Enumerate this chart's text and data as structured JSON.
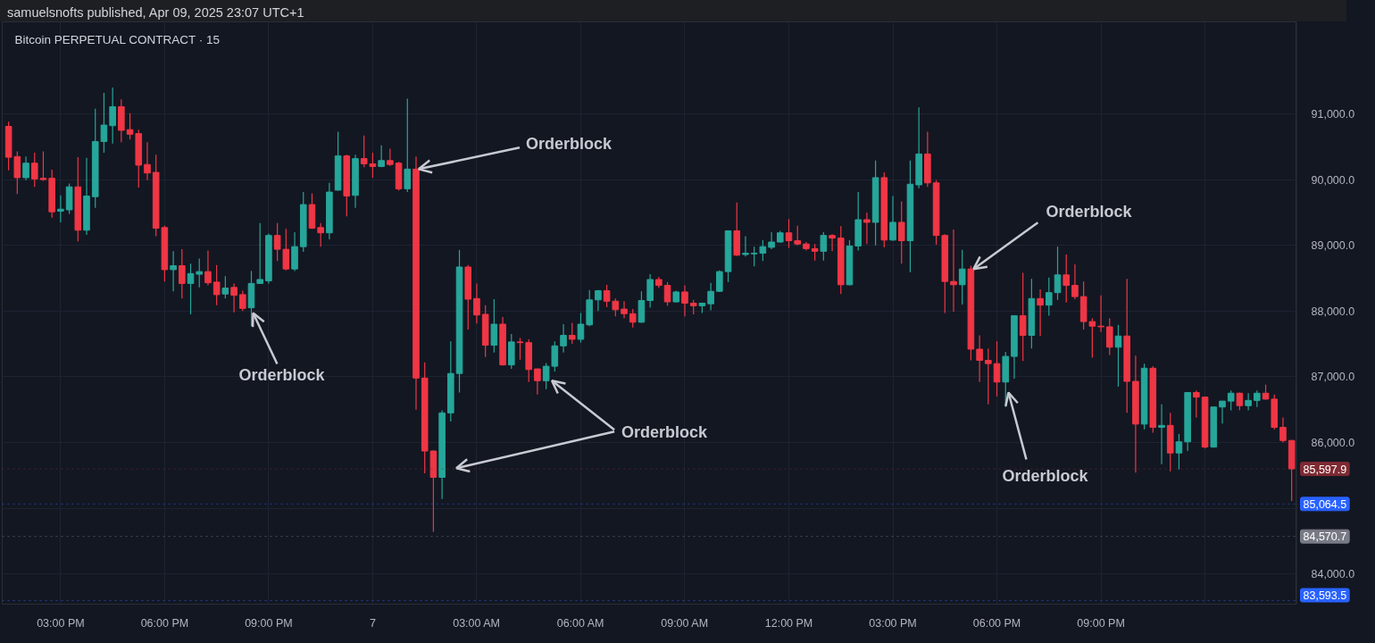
{
  "chart_data": {
    "type": "candlestick",
    "title": "Bitcoin PERPETUAL CONTRACT · 15",
    "x": [
      "2025-04-06T13:30",
      "2025-04-06T13:45",
      "2025-04-06T14:00",
      "2025-04-06T14:15",
      "2025-04-06T14:30",
      "2025-04-06T14:45",
      "2025-04-06T15:00",
      "2025-04-06T15:15",
      "2025-04-06T15:30",
      "2025-04-06T15:45",
      "2025-04-06T16:00",
      "2025-04-06T16:15",
      "2025-04-06T16:30",
      "2025-04-06T16:45",
      "2025-04-06T17:00",
      "2025-04-06T17:15",
      "2025-04-06T17:30",
      "2025-04-06T17:45",
      "2025-04-06T18:00",
      "2025-04-06T18:15",
      "2025-04-06T18:30",
      "2025-04-06T18:45",
      "2025-04-06T19:00",
      "2025-04-06T19:15",
      "2025-04-06T19:30",
      "2025-04-06T19:45",
      "2025-04-06T20:00",
      "2025-04-06T20:15",
      "2025-04-06T20:30",
      "2025-04-06T20:45",
      "2025-04-06T21:00",
      "2025-04-06T21:15",
      "2025-04-06T21:30",
      "2025-04-06T21:45",
      "2025-04-06T22:00",
      "2025-04-06T22:15",
      "2025-04-06T22:30",
      "2025-04-06T22:45",
      "2025-04-06T23:00",
      "2025-04-06T23:15",
      "2025-04-06T23:30",
      "2025-04-06T23:45",
      "2025-04-07T00:00",
      "2025-04-07T00:15",
      "2025-04-07T00:30",
      "2025-04-07T00:45",
      "2025-04-07T01:00",
      "2025-04-07T01:15",
      "2025-04-07T01:30",
      "2025-04-07T01:45",
      "2025-04-07T02:00",
      "2025-04-07T02:15",
      "2025-04-07T02:30",
      "2025-04-07T02:45",
      "2025-04-07T03:00",
      "2025-04-07T03:15",
      "2025-04-07T03:30",
      "2025-04-07T03:45",
      "2025-04-07T04:00",
      "2025-04-07T04:15",
      "2025-04-07T04:30",
      "2025-04-07T04:45",
      "2025-04-07T05:00",
      "2025-04-07T05:15",
      "2025-04-07T05:30",
      "2025-04-07T05:45",
      "2025-04-07T06:00",
      "2025-04-07T06:15",
      "2025-04-07T06:30",
      "2025-04-07T06:45",
      "2025-04-07T07:00",
      "2025-04-07T07:15",
      "2025-04-07T07:30",
      "2025-04-07T07:45",
      "2025-04-07T08:00",
      "2025-04-07T08:15",
      "2025-04-07T08:30",
      "2025-04-07T08:45",
      "2025-04-07T09:00",
      "2025-04-07T09:15",
      "2025-04-07T09:30",
      "2025-04-07T09:45",
      "2025-04-07T10:00",
      "2025-04-07T10:15",
      "2025-04-07T10:30",
      "2025-04-07T10:45",
      "2025-04-07T11:00",
      "2025-04-07T11:15",
      "2025-04-07T11:30",
      "2025-04-07T11:45",
      "2025-04-07T12:00",
      "2025-04-07T12:15",
      "2025-04-07T12:30",
      "2025-04-07T12:45",
      "2025-04-07T13:00",
      "2025-04-07T13:15",
      "2025-04-07T13:30",
      "2025-04-07T13:45",
      "2025-04-07T14:00",
      "2025-04-07T14:15",
      "2025-04-07T14:30",
      "2025-04-07T14:45",
      "2025-04-07T15:00",
      "2025-04-07T15:15",
      "2025-04-07T15:30",
      "2025-04-07T15:45",
      "2025-04-07T16:00",
      "2025-04-07T16:15",
      "2025-04-07T16:30",
      "2025-04-07T16:45",
      "2025-04-07T17:00",
      "2025-04-07T17:15",
      "2025-04-07T17:30",
      "2025-04-07T17:45",
      "2025-04-07T18:00",
      "2025-04-07T18:15",
      "2025-04-07T18:30",
      "2025-04-07T18:45",
      "2025-04-07T19:00",
      "2025-04-07T19:15",
      "2025-04-07T19:30",
      "2025-04-07T19:45",
      "2025-04-07T20:00",
      "2025-04-07T20:15",
      "2025-04-07T20:30",
      "2025-04-07T20:45",
      "2025-04-07T21:00",
      "2025-04-07T21:15",
      "2025-04-07T21:30",
      "2025-04-07T21:45",
      "2025-04-07T22:00",
      "2025-04-07T22:15",
      "2025-04-07T22:30",
      "2025-04-07T22:45",
      "2025-04-07T23:00",
      "2025-04-07T23:15",
      "2025-04-07T23:30",
      "2025-04-07T23:45",
      "2025-04-08T00:00",
      "2025-04-08T00:15",
      "2025-04-08T00:30",
      "2025-04-08T00:45",
      "2025-04-08T01:00",
      "2025-04-08T01:15",
      "2025-04-08T01:30",
      "2025-04-08T01:45",
      "2025-04-08T02:00",
      "2025-04-08T02:15",
      "2025-04-08T02:30"
    ],
    "ohlc": [
      [
        90810,
        90880,
        90140,
        90340
      ],
      [
        90350,
        90430,
        89780,
        90030
      ],
      [
        90030,
        90350,
        89990,
        90250
      ],
      [
        90250,
        90410,
        89890,
        90010
      ],
      [
        90020,
        90430,
        89980,
        90000
      ],
      [
        90020,
        90150,
        89420,
        89510
      ],
      [
        89520,
        89760,
        89350,
        89550
      ],
      [
        89540,
        89940,
        89480,
        89890
      ],
      [
        89890,
        90340,
        89060,
        89230
      ],
      [
        89230,
        90330,
        89160,
        89750
      ],
      [
        89740,
        91080,
        89570,
        90580
      ],
      [
        90580,
        91320,
        90410,
        90830
      ],
      [
        90820,
        91400,
        90550,
        91110
      ],
      [
        91110,
        91220,
        90570,
        90750
      ],
      [
        90760,
        91010,
        90610,
        90690
      ],
      [
        90700,
        90760,
        89880,
        90220
      ],
      [
        90230,
        90570,
        89990,
        90100
      ],
      [
        90110,
        90380,
        89140,
        89260
      ],
      [
        89270,
        89300,
        88450,
        88630
      ],
      [
        88630,
        88910,
        88300,
        88690
      ],
      [
        88690,
        88940,
        88190,
        88420
      ],
      [
        88420,
        88720,
        87950,
        88570
      ],
      [
        88560,
        88800,
        88360,
        88600
      ],
      [
        88600,
        88920,
        88390,
        88430
      ],
      [
        88440,
        88700,
        88090,
        88250
      ],
      [
        88260,
        88530,
        88190,
        88350
      ],
      [
        88360,
        88420,
        87980,
        88240
      ],
      [
        88250,
        88310,
        88000,
        88040
      ],
      [
        88050,
        88610,
        87770,
        88420
      ],
      [
        88420,
        89340,
        88410,
        88480
      ],
      [
        88460,
        89180,
        88420,
        89150
      ],
      [
        89150,
        89340,
        88760,
        88940
      ],
      [
        88940,
        89250,
        88620,
        88640
      ],
      [
        88640,
        89200,
        88610,
        88980
      ],
      [
        88980,
        89810,
        88900,
        89620
      ],
      [
        89620,
        89790,
        89250,
        89260
      ],
      [
        89270,
        89340,
        88980,
        89190
      ],
      [
        89190,
        89950,
        89090,
        89810
      ],
      [
        89840,
        90730,
        89830,
        90360
      ],
      [
        90360,
        90380,
        89440,
        89750
      ],
      [
        89760,
        90380,
        89570,
        90320
      ],
      [
        90320,
        90670,
        90190,
        90240
      ],
      [
        90240,
        90410,
        90030,
        90200
      ],
      [
        90200,
        90520,
        90190,
        90290
      ],
      [
        90290,
        90470,
        90210,
        90230
      ],
      [
        90250,
        90270,
        89830,
        89860
      ],
      [
        89860,
        91230,
        89810,
        90160
      ],
      [
        90160,
        90350,
        86500,
        86980
      ],
      [
        86980,
        87220,
        85530,
        85870
      ],
      [
        85870,
        85880,
        84640,
        85470
      ],
      [
        85470,
        86490,
        85140,
        86450
      ],
      [
        86450,
        87540,
        86320,
        87050
      ],
      [
        87050,
        88930,
        86760,
        88670
      ],
      [
        88670,
        88700,
        87720,
        88180
      ],
      [
        88190,
        88420,
        87810,
        87940
      ],
      [
        87950,
        88090,
        87300,
        87480
      ],
      [
        87480,
        88180,
        87370,
        87800
      ],
      [
        87800,
        87910,
        87170,
        87180
      ],
      [
        87180,
        87650,
        87120,
        87530
      ],
      [
        87530,
        87590,
        87260,
        87520
      ],
      [
        87520,
        87570,
        86920,
        87110
      ],
      [
        87120,
        87120,
        86730,
        86940
      ],
      [
        86940,
        87210,
        86810,
        87160
      ],
      [
        87160,
        87540,
        87080,
        87470
      ],
      [
        87470,
        87800,
        87370,
        87630
      ],
      [
        87630,
        87820,
        87500,
        87570
      ],
      [
        87570,
        87970,
        87520,
        87800
      ],
      [
        87790,
        88320,
        87770,
        88170
      ],
      [
        88170,
        88320,
        88000,
        88310
      ],
      [
        88310,
        88400,
        88060,
        88150
      ],
      [
        88150,
        88190,
        87920,
        88020
      ],
      [
        88030,
        88150,
        87890,
        87960
      ],
      [
        87960,
        88030,
        87750,
        87830
      ],
      [
        87830,
        88300,
        87820,
        88160
      ],
      [
        88160,
        88560,
        88050,
        88480
      ],
      [
        88480,
        88520,
        88350,
        88390
      ],
      [
        88390,
        88440,
        88080,
        88140
      ],
      [
        88140,
        88310,
        88130,
        88290
      ],
      [
        88290,
        88390,
        87920,
        88120
      ],
      [
        88120,
        88170,
        87950,
        88080
      ],
      [
        88080,
        88120,
        87970,
        88120
      ],
      [
        88110,
        88430,
        88010,
        88300
      ],
      [
        88300,
        88620,
        88290,
        88600
      ],
      [
        88600,
        89230,
        88440,
        89220
      ],
      [
        89220,
        89650,
        88840,
        88850
      ],
      [
        88860,
        89140,
        88830,
        88880
      ],
      [
        88870,
        88980,
        88680,
        88880
      ],
      [
        88880,
        89080,
        88760,
        88980
      ],
      [
        88970,
        89200,
        88940,
        89050
      ],
      [
        89050,
        89220,
        89040,
        89190
      ],
      [
        89190,
        89400,
        88960,
        89070
      ],
      [
        89070,
        89300,
        89000,
        89020
      ],
      [
        89020,
        89050,
        88920,
        88950
      ],
      [
        88950,
        89020,
        88770,
        88910
      ],
      [
        88910,
        89200,
        88770,
        89150
      ],
      [
        89150,
        89170,
        88910,
        89110
      ],
      [
        89110,
        89290,
        88260,
        88400
      ],
      [
        88400,
        89080,
        88390,
        88990
      ],
      [
        88990,
        89810,
        88920,
        89390
      ],
      [
        89390,
        89500,
        89020,
        89350
      ],
      [
        89350,
        90290,
        89000,
        90030
      ],
      [
        90030,
        90110,
        88970,
        89080
      ],
      [
        89080,
        89750,
        89070,
        89350
      ],
      [
        89350,
        89670,
        88720,
        89070
      ],
      [
        89070,
        90290,
        88590,
        89930
      ],
      [
        89920,
        91100,
        89870,
        90390
      ],
      [
        90390,
        90730,
        89890,
        89950
      ],
      [
        89950,
        89990,
        89010,
        89150
      ],
      [
        89150,
        89170,
        87970,
        88450
      ],
      [
        88450,
        89240,
        87990,
        88400
      ],
      [
        88400,
        88930,
        88100,
        88640
      ],
      [
        88640,
        88690,
        87250,
        87420
      ],
      [
        87420,
        87630,
        86920,
        87250
      ],
      [
        87250,
        87430,
        86580,
        87200
      ],
      [
        87200,
        87540,
        86700,
        86920
      ],
      [
        86920,
        87380,
        86540,
        87310
      ],
      [
        87310,
        87930,
        86970,
        87930
      ],
      [
        87930,
        88580,
        87240,
        87630
      ],
      [
        87630,
        88490,
        87430,
        88190
      ],
      [
        88190,
        88330,
        87620,
        88090
      ],
      [
        88090,
        88510,
        87930,
        88280
      ],
      [
        88280,
        88980,
        88170,
        88550
      ],
      [
        88550,
        88860,
        88130,
        88390
      ],
      [
        88390,
        88710,
        88180,
        88220
      ],
      [
        88220,
        88450,
        87720,
        87840
      ],
      [
        87840,
        87890,
        87290,
        87770
      ],
      [
        87770,
        88240,
        87680,
        87760
      ],
      [
        87760,
        87890,
        87330,
        87450
      ],
      [
        87450,
        87790,
        86850,
        87620
      ],
      [
        87620,
        88490,
        86450,
        86930
      ],
      [
        86930,
        87320,
        85540,
        86280
      ],
      [
        86280,
        87200,
        86200,
        87130
      ],
      [
        87130,
        87160,
        86150,
        86230
      ],
      [
        86230,
        86580,
        85670,
        86260
      ],
      [
        86260,
        86450,
        85560,
        85840
      ],
      [
        85840,
        86130,
        85590,
        86010
      ],
      [
        86010,
        86760,
        85870,
        86760
      ],
      [
        86760,
        86790,
        86380,
        86690
      ],
      [
        86690,
        86700,
        85910,
        85930
      ],
      [
        85930,
        86540,
        85920,
        86540
      ],
      [
        86540,
        86630,
        86290,
        86630
      ],
      [
        86630,
        86790,
        86490,
        86750
      ],
      [
        86750,
        86760,
        86490,
        86560
      ],
      [
        86560,
        86750,
        86490,
        86640
      ],
      [
        86640,
        86790,
        86540,
        86750
      ],
      [
        86750,
        86880,
        86650,
        86660
      ],
      [
        86660,
        86730,
        86200,
        86230
      ],
      [
        86230,
        86380,
        86000,
        86030
      ],
      [
        86030,
        86040,
        85110,
        85597.9
      ]
    ],
    "colors": [
      "#ef3645",
      "#ef3645",
      "#26a69a",
      "#ef3645",
      "#ef3645",
      "#ef3645",
      "#26a69a",
      "#26a69a",
      "#ef3645",
      "#26a69a",
      "#26a69a",
      "#26a69a",
      "#26a69a",
      "#ef3645",
      "#ef3645",
      "#ef3645",
      "#ef3645",
      "#ef3645",
      "#ef3645",
      "#26a69a",
      "#ef3645",
      "#26a69a",
      "#26a69a",
      "#ef3645",
      "#ef3645",
      "#26a69a",
      "#ef3645",
      "#ef3645",
      "#26a69a",
      "#26a69a",
      "#26a69a",
      "#ef3645",
      "#ef3645",
      "#26a69a",
      "#26a69a",
      "#ef3645",
      "#ef3645",
      "#26a69a",
      "#26a69a",
      "#ef3645",
      "#26a69a",
      "#ef3645",
      "#ef3645",
      "#26a69a",
      "#ef3645",
      "#ef3645",
      "#26a69a",
      "#ef3645",
      "#ef3645",
      "#ef3645",
      "#26a69a",
      "#26a69a",
      "#26a69a",
      "#ef3645",
      "#ef3645",
      "#ef3645",
      "#26a69a",
      "#ef3645",
      "#26a69a",
      "#ef3645",
      "#ef3645",
      "#ef3645",
      "#26a69a",
      "#26a69a",
      "#26a69a",
      "#ef3645",
      "#26a69a",
      "#26a69a",
      "#26a69a",
      "#ef3645",
      "#ef3645",
      "#ef3645",
      "#ef3645",
      "#26a69a",
      "#26a69a",
      "#ef3645",
      "#ef3645",
      "#26a69a",
      "#ef3645",
      "#ef3645",
      "#26a69a",
      "#26a69a",
      "#26a69a",
      "#26a69a",
      "#ef3645",
      "#26a69a",
      "#26a69a",
      "#26a69a",
      "#26a69a",
      "#26a69a",
      "#ef3645",
      "#ef3645",
      "#ef3645",
      "#ef3645",
      "#26a69a",
      "#ef3645",
      "#ef3645",
      "#26a69a",
      "#26a69a",
      "#ef3645",
      "#26a69a",
      "#ef3645",
      "#26a69a",
      "#ef3645",
      "#26a69a",
      "#26a69a",
      "#ef3645",
      "#ef3645",
      "#ef3645",
      "#ef3645",
      "#26a69a",
      "#ef3645",
      "#ef3645",
      "#ef3645",
      "#ef3645",
      "#26a69a",
      "#26a69a",
      "#ef3645",
      "#26a69a",
      "#ef3645",
      "#26a69a",
      "#26a69a",
      "#ef3645",
      "#ef3645",
      "#ef3645",
      "#ef3645",
      "#ef3645",
      "#ef3645",
      "#26a69a",
      "#ef3645",
      "#ef3645",
      "#26a69a",
      "#ef3645",
      "#26a69a",
      "#ef3645",
      "#26a69a",
      "#26a69a",
      "#ef3645",
      "#ef3645",
      "#26a69a",
      "#26a69a",
      "#26a69a",
      "#ef3645",
      "#26a69a",
      "#26a69a",
      "#ef3645",
      "#ef3645",
      "#ef3645",
      "#ef3645"
    ],
    "xlim": [
      "2025-04-06T13:19",
      "2025-04-08T02:39"
    ],
    "xticks": [
      {
        "value": "2025-04-06T15:00",
        "label": "03:00 PM"
      },
      {
        "value": "2025-04-06T18:00",
        "label": "06:00 PM"
      },
      {
        "value": "2025-04-06T21:00",
        "label": "09:00 PM"
      },
      {
        "value": "2025-04-07T00:00",
        "label": "7"
      },
      {
        "value": "2025-04-07T03:00",
        "label": "03:00 AM"
      },
      {
        "value": "2025-04-07T06:00",
        "label": "06:00 AM"
      },
      {
        "value": "2025-04-07T09:00",
        "label": "09:00 AM"
      },
      {
        "value": "2025-04-07T12:00",
        "label": "12:00 PM"
      },
      {
        "value": "2025-04-07T15:00",
        "label": "03:00 PM"
      },
      {
        "value": "2025-04-07T18:00",
        "label": "06:00 PM"
      },
      {
        "value": "2025-04-07T21:00",
        "label": "09:00 PM"
      },
      {
        "value": "2025-04-08T00:00",
        "label": null
      }
    ],
    "ylim": [
      83540,
      92400
    ],
    "yticks": [
      {
        "value": 84000,
        "label": "84,000.0"
      },
      {
        "value": 85000,
        "label": null
      },
      {
        "value": 86000,
        "label": "86,000.0"
      },
      {
        "value": 87000,
        "label": "87,000.0"
      },
      {
        "value": 88000,
        "label": "88,000.0"
      },
      {
        "value": 89000,
        "label": "89,000.0"
      },
      {
        "value": 90000,
        "label": "90,000.0"
      },
      {
        "value": 91000,
        "label": "91,000.0"
      }
    ],
    "grid": true,
    "ref_lines": [
      {
        "axis": "y",
        "value": 85597.9,
        "label": "85,597.9",
        "color": "#7e2a33",
        "line_style": "dotted"
      },
      {
        "axis": "y",
        "value": 85064.5,
        "label": "85,064.5",
        "color": "#2962ff",
        "line_style": "dotted"
      },
      {
        "axis": "y",
        "value": 84570.7,
        "label": "84,570.7",
        "color": "#787b86",
        "line_style": "dotted"
      },
      {
        "axis": "y",
        "value": 83593.5,
        "label": "83,593.5",
        "color": "#2962ff",
        "line_style": "dotted"
      }
    ],
    "annotations": [
      "samuelsnofts published, Apr 09, 2025 23:07 UTC+1",
      {
        "text": "Orderblock",
        "x": "2025-04-06T20:33",
        "y": 87970
      },
      {
        "text": "Orderblock",
        "x": "2025-04-07T01:15",
        "y": 90160
      },
      {
        "text": "Orderblock",
        "x": "2025-04-07T05:10",
        "y": 86940
      },
      {
        "text": "Orderblock",
        "x": "2025-04-07T17:15",
        "y": 88640
      },
      {
        "text": "Orderblock",
        "x": "2025-04-07T18:20",
        "y": 86760
      }
    ]
  }
}
